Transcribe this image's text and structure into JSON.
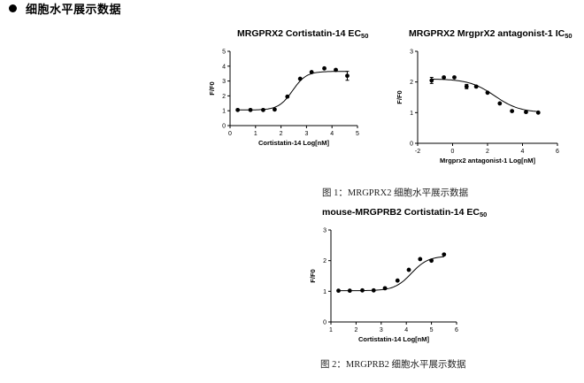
{
  "heading": {
    "bullet_icon": "bullet-dot-icon",
    "text": "细胞水平展示数据"
  },
  "captions": {
    "figure1": "图 1：MRGPRX2 细胞水平展示数据",
    "figure2": "图 2：MRGPRB2 细胞水平展示数据"
  },
  "chart_data": [
    {
      "type": "scatter",
      "title": "MRGPRX2 Cortistatin-14 EC",
      "title_subscript": "50",
      "xlabel": "Cortistatin-14 Log[nM]",
      "ylabel": "F/F0",
      "xlim": [
        0,
        5
      ],
      "ylim": [
        0,
        5
      ],
      "xticks": [
        "0",
        "1",
        "2",
        "3",
        "4",
        "5"
      ],
      "yticks": [
        "0",
        "1",
        "2",
        "3",
        "4",
        "5"
      ],
      "points": [
        {
          "x": 0.3,
          "y": 1.05
        },
        {
          "x": 0.8,
          "y": 1.05
        },
        {
          "x": 1.3,
          "y": 1.05
        },
        {
          "x": 1.75,
          "y": 1.08
        },
        {
          "x": 2.25,
          "y": 1.95
        },
        {
          "x": 2.75,
          "y": 3.15
        },
        {
          "x": 3.2,
          "y": 3.6
        },
        {
          "x": 3.7,
          "y": 3.85
        },
        {
          "x": 4.15,
          "y": 3.75
        },
        {
          "x": 4.6,
          "y": 3.35,
          "err": 0.3
        }
      ],
      "fit": {
        "bottom": 1.05,
        "top": 3.65,
        "logEC50": 2.45,
        "hill": 1.6
      }
    },
    {
      "type": "scatter",
      "title": "MRGPRX2 MrgprX2 antagonist-1 IC",
      "title_subscript": "50",
      "xlabel": "Mrgprx2 antagonist-1 Log[nM]",
      "ylabel": "F/F0",
      "xlim": [
        -2,
        6
      ],
      "ylim": [
        0,
        3
      ],
      "xticks": [
        "-2",
        "0",
        "2",
        "4",
        "6"
      ],
      "yticks": [
        "0",
        "1",
        "2",
        "3"
      ],
      "points": [
        {
          "x": -1.2,
          "y": 2.05,
          "err": 0.1
        },
        {
          "x": -0.5,
          "y": 2.15
        },
        {
          "x": 0.1,
          "y": 2.15
        },
        {
          "x": 0.8,
          "y": 1.85,
          "err": 0.07
        },
        {
          "x": 1.35,
          "y": 1.85
        },
        {
          "x": 2.0,
          "y": 1.65
        },
        {
          "x": 2.7,
          "y": 1.3
        },
        {
          "x": 3.4,
          "y": 1.05
        },
        {
          "x": 4.2,
          "y": 1.02
        },
        {
          "x": 4.9,
          "y": 1.0
        }
      ],
      "fit": {
        "bottom": 1.0,
        "top": 2.1,
        "logEC50": 2.4,
        "hill": -0.6
      }
    },
    {
      "type": "scatter",
      "title": "mouse-MRGPRB2 Cortistatin-14 EC",
      "title_subscript": "50",
      "xlabel": "Cortistatin-14 Log[nM]",
      "ylabel": "F/F0",
      "xlim": [
        1,
        6
      ],
      "ylim": [
        0,
        3
      ],
      "xticks": [
        "1",
        "2",
        "3",
        "4",
        "5",
        "6"
      ],
      "yticks": [
        "0",
        "1",
        "2",
        "3"
      ],
      "points": [
        {
          "x": 1.3,
          "y": 1.02
        },
        {
          "x": 1.75,
          "y": 1.02
        },
        {
          "x": 2.25,
          "y": 1.03
        },
        {
          "x": 2.7,
          "y": 1.03
        },
        {
          "x": 3.15,
          "y": 1.1
        },
        {
          "x": 3.65,
          "y": 1.35
        },
        {
          "x": 4.1,
          "y": 1.7
        },
        {
          "x": 4.55,
          "y": 2.05
        },
        {
          "x": 5.0,
          "y": 2.0
        },
        {
          "x": 5.5,
          "y": 2.2
        }
      ],
      "fit": {
        "bottom": 1.02,
        "top": 2.15,
        "logEC50": 4.2,
        "hill": 1.3
      }
    }
  ]
}
